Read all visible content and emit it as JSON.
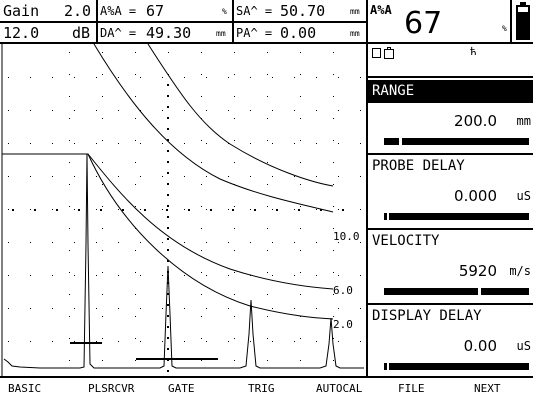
{
  "header": {
    "gain_label": "Gain",
    "gain_value": "2.0",
    "gain_step": "12.0",
    "gain_unit": "dB",
    "a_pct_label": "A%A =",
    "a_pct_value": "67",
    "a_pct_unit": "%",
    "sa_label": "SA^ =",
    "sa_value": "50.70",
    "sa_unit": "mm",
    "da_label": "DA^ =",
    "da_value": "49.30",
    "da_unit": "mm",
    "pa_label": "PA^ =",
    "pa_value": "0.00",
    "pa_unit": "mm",
    "big_label": "A%A",
    "big_value": "67",
    "big_unit": "%"
  },
  "status": {
    "battery_level": 0.85
  },
  "curve_labels": [
    "10.0",
    "6.0",
    "2.0"
  ],
  "params": [
    {
      "title": "RANGE",
      "value": "200.0",
      "unit": "mm",
      "active": true,
      "level": 0.1
    },
    {
      "title": "PROBE DELAY",
      "value": "0.000",
      "unit": "uS",
      "active": false,
      "level": 0.0
    },
    {
      "title": "VELOCITY",
      "value": "5920",
      "unit": "m/s",
      "active": false,
      "level": 0.65
    },
    {
      "title": "DISPLAY DELAY",
      "value": "0.00",
      "unit": "uS",
      "active": false,
      "level": 0.0
    }
  ],
  "menu": [
    "BASIC",
    "PLSRCVR",
    "GATE",
    "TRIG",
    "AUTOCAL",
    "FILE",
    "NEXT"
  ]
}
